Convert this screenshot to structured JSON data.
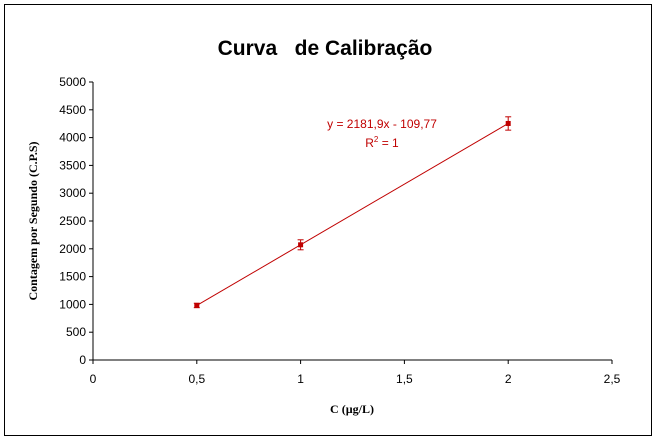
{
  "chart_data": {
    "type": "scatter",
    "title": "Curva   de Calibração",
    "xlabel": "C (µg/L)",
    "ylabel": "Contagem por Segundo (C.P.S)",
    "xlim": [
      0,
      2.5
    ],
    "ylim": [
      0,
      5000
    ],
    "x_ticks": [
      0,
      0.5,
      1,
      1.5,
      2,
      2.5
    ],
    "x_tick_labels": [
      "0",
      "0,5",
      "1",
      "1,5",
      "2",
      "2,5"
    ],
    "y_ticks": [
      0,
      500,
      1000,
      1500,
      2000,
      2500,
      3000,
      3500,
      4000,
      4500,
      5000
    ],
    "y_tick_labels": [
      "0",
      "500",
      "1000",
      "1500",
      "2000",
      "2500",
      "3000",
      "3500",
      "4000",
      "4500",
      "5000"
    ],
    "grid": false,
    "series": [
      {
        "x": [
          0.5,
          1,
          2
        ],
        "y": [
          981,
          2072,
          4254
        ],
        "error": [
          40,
          90,
          120
        ],
        "color": "#c00000"
      }
    ],
    "trendline": {
      "slope": 2181.9,
      "intercept": -109.77,
      "x_range": [
        0.5,
        2
      ],
      "color": "#c00000"
    },
    "equation_label": "y = 2181,9x - 109,77",
    "r2_prefix": "R",
    "r2_sup": "2",
    "r2_suffix": " = 1"
  }
}
